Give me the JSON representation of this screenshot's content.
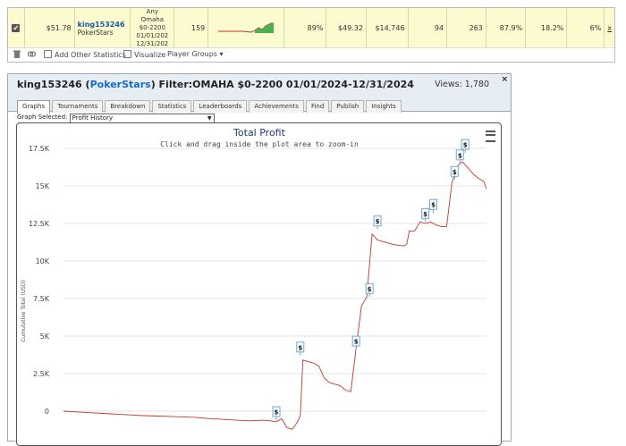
{
  "stats_row": {
    "checked": true,
    "value1": "$51.78",
    "player_name": "king153246",
    "site": "PokerStars",
    "filter_lines": [
      "Any",
      "Omaha",
      "$0-2200",
      "01/01/202",
      "12/31/202"
    ],
    "games": "159",
    "pct1": "89%",
    "avg": "$49.32",
    "total": "$14,746",
    "n1": "94",
    "n2": "263",
    "pct2": "87.9%",
    "pct3": "18.2%",
    "pct4": "6%",
    "close": "x"
  },
  "toolbar": {
    "add_stats": "Add Other Statistics",
    "visualize": "Visualize",
    "player_groups": "Player Groups"
  },
  "panel": {
    "player": "king153246",
    "site": "PokerStars",
    "filter": "Filter:OMAHA $0-2200 01/01/2024-12/31/2024",
    "views": "Views: 1,780",
    "close": "×",
    "tabs": [
      "Graphs",
      "Tournaments",
      "Breakdown",
      "Statistics",
      "Leaderboards",
      "Achievements",
      "Find",
      "Publish",
      "Insights"
    ],
    "graph_selected_label": "Graph Selected:",
    "graph_selected_value": "Profit History"
  },
  "chart_data": {
    "type": "line",
    "title": "Total Profit",
    "subtitle": "Click and drag inside the plot area to zoom-in",
    "ylabel": "Cumulative Total (USD)",
    "ylim": [
      -600,
      17500
    ],
    "yticks": [
      0,
      2500,
      5000,
      7500,
      10000,
      12500,
      15000,
      17500
    ],
    "ytick_labels": [
      "0",
      "2.5K",
      "5K",
      "7.5K",
      "10K",
      "12.5K",
      "15K",
      "17.5K"
    ],
    "xlim": [
      0,
      159
    ],
    "series": [
      {
        "color": "#c0392b",
        "x": [
          0,
          5,
          10,
          15,
          20,
          25,
          30,
          35,
          40,
          45,
          50,
          55,
          60,
          65,
          70,
          75,
          78,
          80,
          82,
          84,
          86,
          88,
          89,
          90,
          92,
          94,
          96,
          98,
          100,
          102,
          104,
          106,
          108,
          110,
          112,
          114,
          116,
          118,
          120,
          122,
          124,
          126,
          128,
          129,
          130,
          132,
          134,
          136,
          138,
          140,
          142,
          144,
          146,
          148,
          149,
          150,
          152,
          154,
          156,
          158,
          159
        ],
        "y": [
          0,
          -50,
          -100,
          -150,
          -200,
          -250,
          -300,
          -330,
          -350,
          -380,
          -420,
          -500,
          -550,
          -600,
          -640,
          -600,
          -650,
          -700,
          -500,
          -1100,
          -1200,
          -700,
          -300,
          3400,
          3300,
          3200,
          3000,
          2200,
          1900,
          1800,
          1700,
          1400,
          1300,
          4200,
          7000,
          7600,
          11800,
          11400,
          11300,
          11200,
          11100,
          11050,
          11000,
          11100,
          12000,
          12000,
          12600,
          12500,
          12600,
          12400,
          12300,
          12300,
          15200,
          16300,
          16500,
          16600,
          16200,
          15800,
          15500,
          15300,
          14800
        ]
      }
    ],
    "markers": [
      {
        "x": 80,
        "y": -600,
        "label": "$"
      },
      {
        "x": 89,
        "y": 3700,
        "label": "$"
      },
      {
        "x": 110,
        "y": 4100,
        "label": "$"
      },
      {
        "x": 115,
        "y": 7600,
        "label": "$"
      },
      {
        "x": 118,
        "y": 12100,
        "label": "$"
      },
      {
        "x": 136,
        "y": 12600,
        "label": "$"
      },
      {
        "x": 139,
        "y": 13200,
        "label": "$"
      },
      {
        "x": 147,
        "y": 15400,
        "label": "$"
      },
      {
        "x": 149,
        "y": 16500,
        "label": "$"
      },
      {
        "x": 151,
        "y": 17200,
        "label": "$"
      }
    ]
  }
}
